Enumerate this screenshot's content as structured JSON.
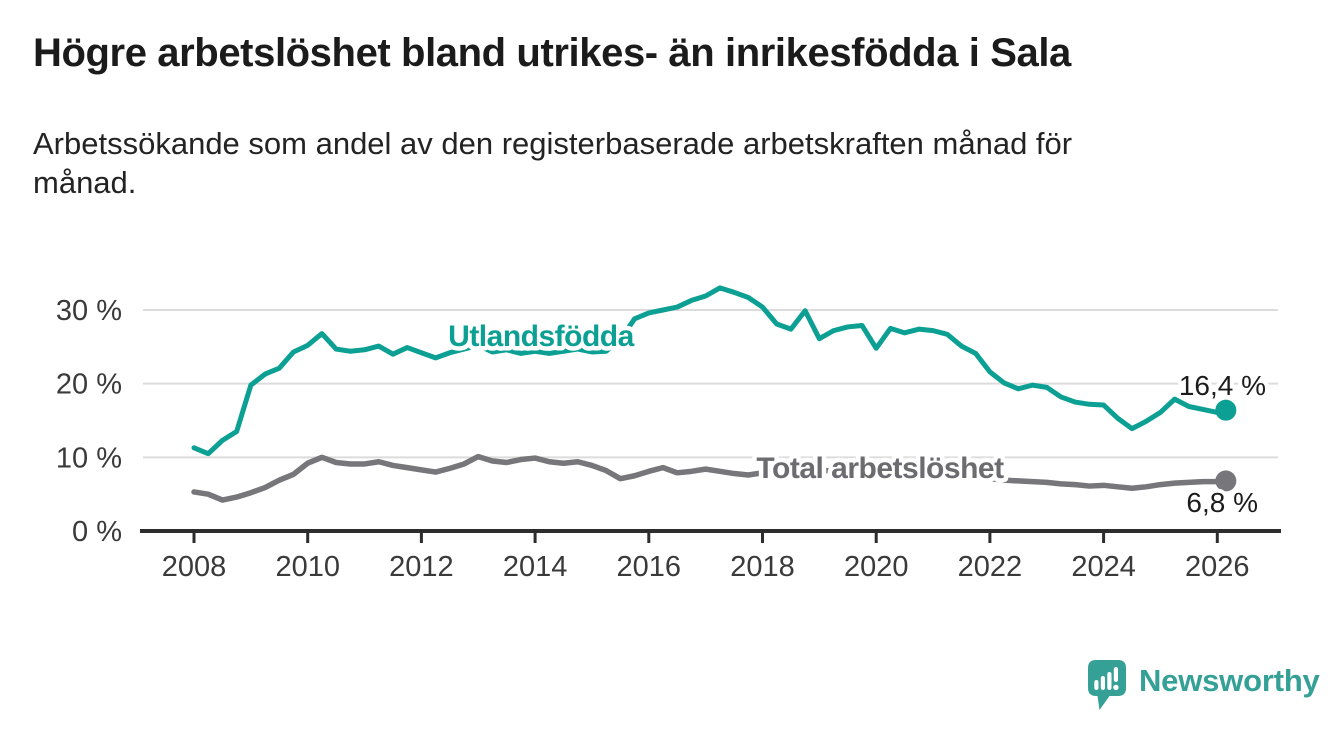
{
  "title": "Högre arbetslöshet bland utrikes- än inrikesfödda i Sala",
  "subtitle": "Arbetssökande som andel av den registerbaserade arbetskraften månad för\nmånad.",
  "branding": {
    "logo_text": "Newsworthy",
    "logo_icon": "newsworthy-speech-bubble-bar-chart-icon",
    "color": "#35a096"
  },
  "colors": {
    "accent_teal": "#0ba093",
    "line_gray": "#76767b",
    "axis": "#2d2d2d",
    "gridline": "#dcdcdc",
    "tick_text": "#3a3a3a",
    "title_text": "#1b1b1b"
  },
  "chart_data": {
    "type": "line",
    "title": "Högre arbetslöshet bland utrikes- än inrikesfödda i Sala",
    "subtitle": "Arbetssökande som andel av den registerbaserade arbetskraften månad för månad.",
    "unit": "%",
    "grid": true,
    "legend_position": "inline-labels",
    "xlim": [
      2007.05,
      2027.1
    ],
    "ylim": [
      0,
      36.5
    ],
    "x_ticks": [
      2008,
      2010,
      2012,
      2014,
      2016,
      2018,
      2020,
      2022,
      2024,
      2026
    ],
    "y_ticks": [
      {
        "value": 0,
        "label": "0 %"
      },
      {
        "value": 10,
        "label": "10 %"
      },
      {
        "value": 20,
        "label": "20 %"
      },
      {
        "value": 30,
        "label": "30 %"
      }
    ],
    "x": [
      2008,
      2008.25,
      2008.5,
      2008.75,
      2009,
      2009.25,
      2009.5,
      2009.75,
      2010,
      2010.25,
      2010.5,
      2010.75,
      2011,
      2011.25,
      2011.5,
      2011.75,
      2012,
      2012.25,
      2012.5,
      2012.75,
      2013,
      2013.25,
      2013.5,
      2013.75,
      2014,
      2014.25,
      2014.5,
      2014.75,
      2015,
      2015.25,
      2015.5,
      2015.75,
      2016,
      2016.25,
      2016.5,
      2016.75,
      2017,
      2017.25,
      2017.5,
      2017.75,
      2018,
      2018.25,
      2018.5,
      2018.75,
      2019,
      2019.25,
      2019.5,
      2019.75,
      2020,
      2020.25,
      2020.5,
      2020.75,
      2021,
      2021.25,
      2021.5,
      2021.75,
      2022,
      2022.25,
      2022.5,
      2022.75,
      2023,
      2023.25,
      2023.5,
      2023.75,
      2024,
      2024.25,
      2024.5,
      2024.75,
      2025,
      2025.25,
      2025.5,
      2025.75,
      2026,
      2026.15
    ],
    "series": [
      {
        "name": "Utlandsfödda",
        "color": "#0ba093",
        "label_color": "#0ba093",
        "end_label": "16,4 %",
        "end_value": 16.4,
        "values": [
          11.3,
          10.5,
          12.3,
          13.5,
          19.8,
          21.3,
          22.1,
          24.3,
          25.2,
          26.8,
          24.7,
          24.4,
          24.6,
          25.1,
          24.0,
          24.9,
          24.2,
          23.5,
          24.2,
          24.7,
          25.2,
          24.3,
          24.6,
          24.1,
          24.4,
          24.1,
          24.4,
          24.7,
          24.3,
          24.4,
          26.0,
          28.8,
          29.6,
          30.0,
          30.4,
          31.3,
          31.9,
          33.0,
          32.4,
          31.7,
          30.4,
          28.1,
          27.4,
          29.9,
          26.1,
          27.2,
          27.7,
          27.9,
          24.8,
          27.5,
          26.9,
          27.4,
          27.2,
          26.7,
          25.1,
          24.1,
          21.6,
          20.1,
          19.3,
          19.8,
          19.5,
          18.2,
          17.5,
          17.2,
          17.1,
          15.3,
          13.9,
          14.9,
          16.1,
          17.9,
          16.9,
          16.5,
          16.1,
          16.4
        ]
      },
      {
        "name": "Total arbetslöshet",
        "color": "#76767b",
        "label_color": "#6b6b70",
        "end_label": "6,8 %",
        "end_value": 6.8,
        "values": [
          5.3,
          5.0,
          4.2,
          4.6,
          5.2,
          5.9,
          6.9,
          7.7,
          9.2,
          10.0,
          9.3,
          9.1,
          9.1,
          9.4,
          8.9,
          8.6,
          8.3,
          8.0,
          8.5,
          9.1,
          10.1,
          9.5,
          9.3,
          9.7,
          9.9,
          9.4,
          9.2,
          9.4,
          8.9,
          8.2,
          7.1,
          7.5,
          8.1,
          8.6,
          7.9,
          8.1,
          8.4,
          8.1,
          7.8,
          7.6,
          7.9,
          8.1,
          7.9,
          8.0,
          8.3,
          8.1,
          8.2,
          8.1,
          8.3,
          8.9,
          9.1,
          8.8,
          8.5,
          8.2,
          7.8,
          7.4,
          7.1,
          6.9,
          6.8,
          6.7,
          6.6,
          6.4,
          6.3,
          6.1,
          6.2,
          6.0,
          5.8,
          6.0,
          6.3,
          6.5,
          6.6,
          6.7,
          6.7,
          6.8
        ]
      }
    ]
  }
}
